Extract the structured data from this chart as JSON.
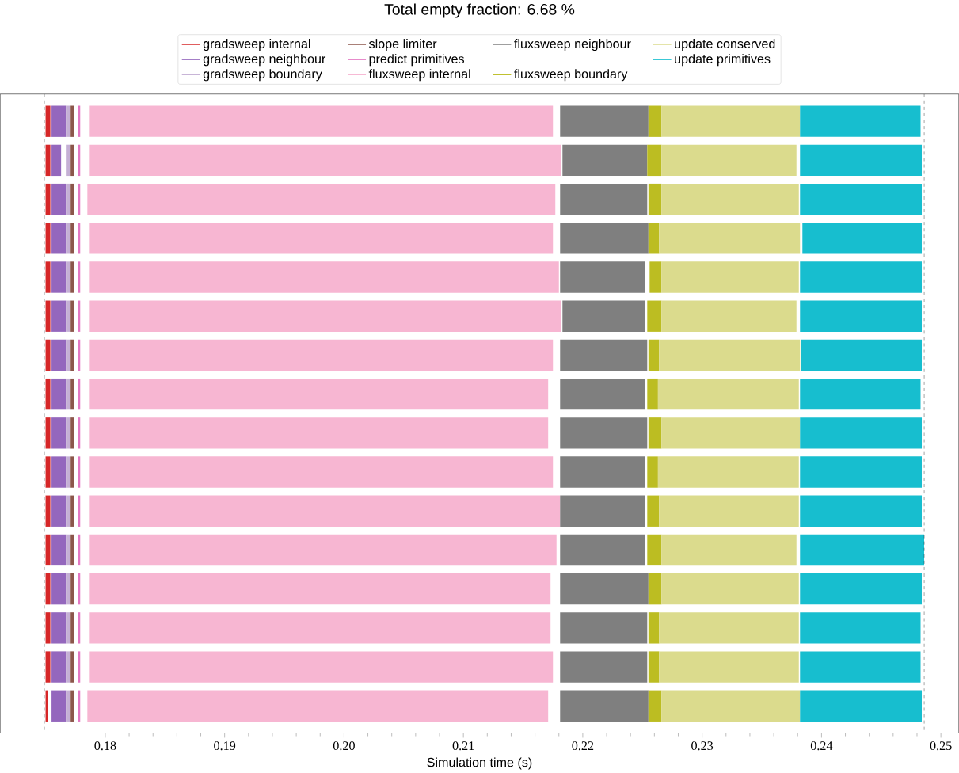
{
  "chart_data": {
    "type": "bar",
    "orientation": "horizontal",
    "title": "Total empty fraction: 6.68 %",
    "xlabel": "Simulation time (s)",
    "categories": [
      null,
      null,
      null,
      null,
      null,
      null,
      null,
      null,
      null,
      null,
      null,
      null,
      null,
      null,
      null,
      null
    ],
    "series": [
      {
        "name": "gradsweep internal",
        "color": "#d62728",
        "base": [
          0.175,
          0.175,
          0.175,
          0.175,
          0.175,
          0.175,
          0.175,
          0.175,
          0.175,
          0.175,
          0.175,
          0.175,
          0.175,
          0.175,
          0.175,
          0.175
        ],
        "values": [
          0.0004,
          0.0004,
          0.0004,
          0.0004,
          0.0004,
          0.0004,
          0.0004,
          0.0004,
          0.0004,
          0.0004,
          0.0004,
          0.0004,
          0.0004,
          0.0004,
          0.0004,
          0.0002
        ]
      },
      {
        "name": "gradsweep neighbour",
        "color": "#9467bd",
        "base": [
          0.1755,
          0.1755,
          0.1755,
          0.1755,
          0.1755,
          0.1755,
          0.1755,
          0.1755,
          0.1755,
          0.1755,
          0.1755,
          0.1755,
          0.1755,
          0.1755,
          0.1755,
          0.1755
        ],
        "values": [
          0.0012,
          0.0008,
          0.0012,
          0.0012,
          0.0012,
          0.0012,
          0.0012,
          0.0012,
          0.0012,
          0.0012,
          0.0012,
          0.0012,
          0.0012,
          0.0012,
          0.0012,
          0.0012
        ]
      },
      {
        "name": "gradsweep boundary",
        "color": "#c5b0d5",
        "base": [
          0.1767,
          0.1767,
          0.1767,
          0.1767,
          0.1767,
          0.1767,
          0.1767,
          0.1767,
          0.1767,
          0.1767,
          0.1767,
          0.1767,
          0.1767,
          0.1767,
          0.1767,
          0.1767
        ],
        "values": [
          0.0004,
          0.0004,
          0.0004,
          0.0004,
          0.0004,
          0.0004,
          0.0004,
          0.0004,
          0.0004,
          0.0004,
          0.0004,
          0.0004,
          0.0004,
          0.0004,
          0.0004,
          0.0004
        ]
      },
      {
        "name": "slope limiter",
        "color": "#8c564b",
        "base": [
          0.1771,
          0.1771,
          0.1771,
          0.1771,
          0.1771,
          0.1771,
          0.1771,
          0.1771,
          0.1771,
          0.1771,
          0.1771,
          0.1771,
          0.1771,
          0.1771,
          0.1771,
          0.1771
        ],
        "values": [
          0.0003,
          0.0003,
          0.0003,
          0.0003,
          0.0003,
          0.0003,
          0.0003,
          0.0003,
          0.0003,
          0.0003,
          0.0003,
          0.0003,
          0.0003,
          0.0003,
          0.0003,
          0.0003
        ]
      },
      {
        "name": "predict primitives",
        "color": "#e377c2",
        "base": [
          0.1777,
          0.1777,
          0.1777,
          0.1777,
          0.1777,
          0.1777,
          0.1777,
          0.1777,
          0.1777,
          0.1777,
          0.1777,
          0.1777,
          0.1777,
          0.1777,
          0.1777,
          0.1777
        ],
        "values": [
          0.0002,
          0.0002,
          0.0002,
          0.0002,
          0.0002,
          0.0002,
          0.0002,
          0.0002,
          0.0002,
          0.0002,
          0.0002,
          0.0002,
          0.0002,
          0.0002,
          0.0002,
          0.0002
        ]
      },
      {
        "name": "fluxsweep internal",
        "color": "#f7b6d2",
        "base": [
          0.1787,
          0.1787,
          0.1785,
          0.1787,
          0.1787,
          0.1787,
          0.1787,
          0.1787,
          0.1787,
          0.1787,
          0.1787,
          0.1787,
          0.1787,
          0.1787,
          0.1787,
          0.1785
        ],
        "values": [
          0.0388,
          0.0395,
          0.0392,
          0.0388,
          0.0393,
          0.0395,
          0.0388,
          0.0384,
          0.0384,
          0.0388,
          0.0394,
          0.0391,
          0.0386,
          0.0386,
          0.0388,
          0.0386
        ]
      },
      {
        "name": "fluxsweep neighbour",
        "color": "#7f7f7f",
        "base": [
          0.2181,
          0.2183,
          0.2181,
          0.2181,
          0.2181,
          0.2183,
          0.2181,
          0.2181,
          0.2181,
          0.2181,
          0.2181,
          0.2181,
          0.2181,
          0.2181,
          0.2181,
          0.2181
        ],
        "values": [
          0.0074,
          0.0071,
          0.0073,
          0.0074,
          0.0071,
          0.0069,
          0.0073,
          0.0071,
          0.0073,
          0.0071,
          0.0071,
          0.0071,
          0.0074,
          0.0073,
          0.0073,
          0.0074
        ]
      },
      {
        "name": "fluxsweep boundary",
        "color": "#bcbd22",
        "base": [
          0.2255,
          0.2254,
          0.2255,
          0.2255,
          0.2256,
          0.2254,
          0.2255,
          0.2254,
          0.2255,
          0.2254,
          0.2254,
          0.2254,
          0.2255,
          0.2255,
          0.2255,
          0.2255
        ],
        "values": [
          0.0011,
          0.0012,
          0.0011,
          0.0009,
          0.001,
          0.0012,
          0.0009,
          0.0009,
          0.0011,
          0.0009,
          0.001,
          0.0012,
          0.0011,
          0.0009,
          0.0009,
          0.0011
        ]
      },
      {
        "name": "update conserved",
        "color": "#dbdb8d",
        "base": [
          0.2266,
          0.2266,
          0.2266,
          0.2264,
          0.2266,
          0.2266,
          0.2264,
          0.2263,
          0.2266,
          0.2263,
          0.2264,
          0.2266,
          0.2266,
          0.2264,
          0.2264,
          0.2266
        ],
        "values": [
          0.0116,
          0.0113,
          0.0115,
          0.0118,
          0.0115,
          0.0113,
          0.0118,
          0.0118,
          0.0116,
          0.0118,
          0.0117,
          0.0113,
          0.0115,
          0.0117,
          0.0117,
          0.0116
        ]
      },
      {
        "name": "update primitives",
        "color": "#17becf",
        "base": [
          0.2382,
          0.2382,
          0.2382,
          0.2384,
          0.2382,
          0.2382,
          0.2383,
          0.2382,
          0.2382,
          0.2382,
          0.2382,
          0.2382,
          0.2382,
          0.2382,
          0.2382,
          0.2382
        ],
        "values": [
          0.0101,
          0.0102,
          0.0102,
          0.01,
          0.0102,
          0.0102,
          0.0101,
          0.0101,
          0.0102,
          0.0102,
          0.0102,
          0.0104,
          0.0102,
          0.0101,
          0.0101,
          0.0102
        ]
      }
    ],
    "xlim": [
      0.1712,
      0.2515
    ],
    "xticks": [
      0.18,
      0.19,
      {
        "value": 0.2,
        "label": "0.20"
      },
      0.21,
      0.22,
      0.23,
      0.24,
      0.25
    ],
    "ref_lines": [
      {
        "axis": "x",
        "value": 0.1749,
        "color": "#000000",
        "line_style": "dashed"
      },
      {
        "axis": "x",
        "value": 0.2486,
        "color": "#000000",
        "line_style": "dashed"
      }
    ],
    "legend": "top",
    "tick_labels": "x"
  }
}
